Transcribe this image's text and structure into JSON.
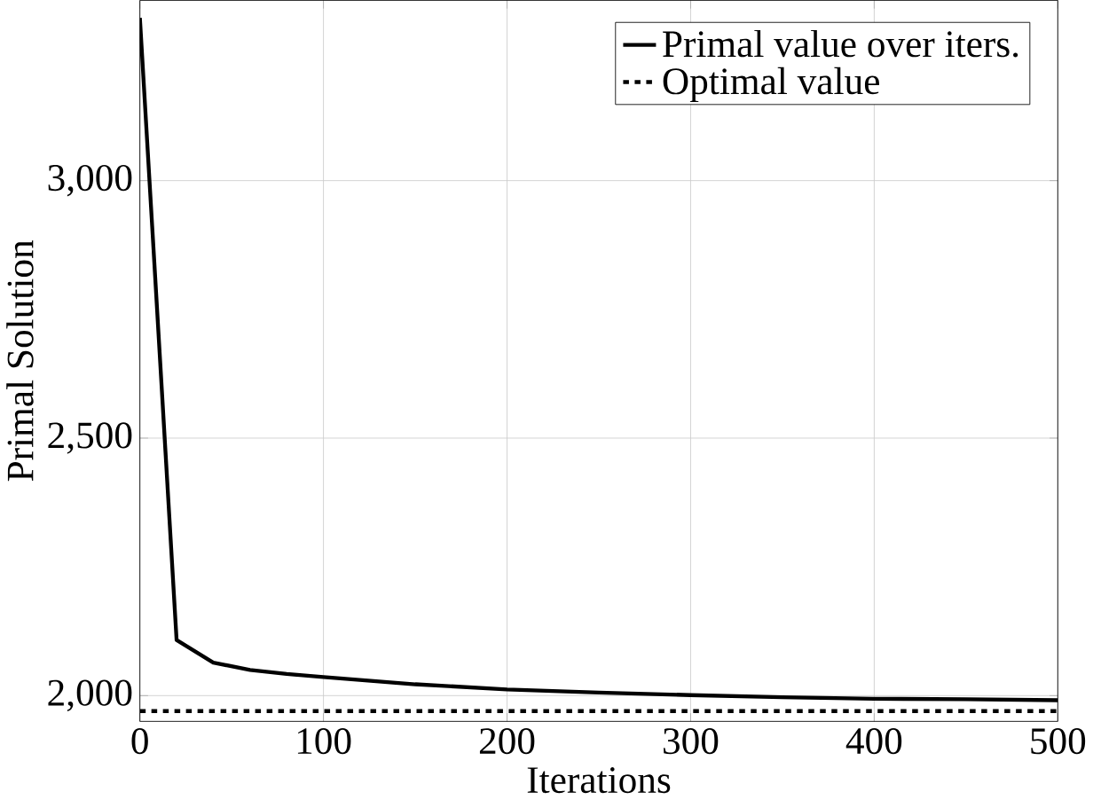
{
  "chart_data": {
    "type": "line",
    "xlabel": "Iterations",
    "ylabel": "Primal Solution",
    "xlim": [
      0,
      500
    ],
    "ylim": [
      1950,
      3350
    ],
    "xticks": [
      0,
      100,
      200,
      300,
      400,
      500
    ],
    "yticks": [
      {
        "value": 2000,
        "label": "2,000"
      },
      {
        "value": 2500,
        "label": "2,500"
      },
      {
        "value": 3000,
        "label": "3,000"
      }
    ],
    "grid": true,
    "legend": "top right",
    "marker": "none",
    "series": [
      {
        "name": "Primal value over iters.",
        "color": "#000000",
        "line_style": "solid",
        "x": [
          0,
          20,
          40,
          60,
          80,
          100,
          150,
          200,
          250,
          300,
          350,
          400,
          450,
          500
        ],
        "values": [
          3316,
          2108,
          2064,
          2050,
          2042,
          2036,
          2022,
          2012,
          2006,
          2001,
          1997,
          1994,
          1993,
          1991
        ]
      },
      {
        "name": "Optimal value",
        "color": "#000000",
        "line_style": "dashed",
        "x": [
          0,
          500
        ],
        "values": [
          1970,
          1970
        ]
      }
    ]
  }
}
